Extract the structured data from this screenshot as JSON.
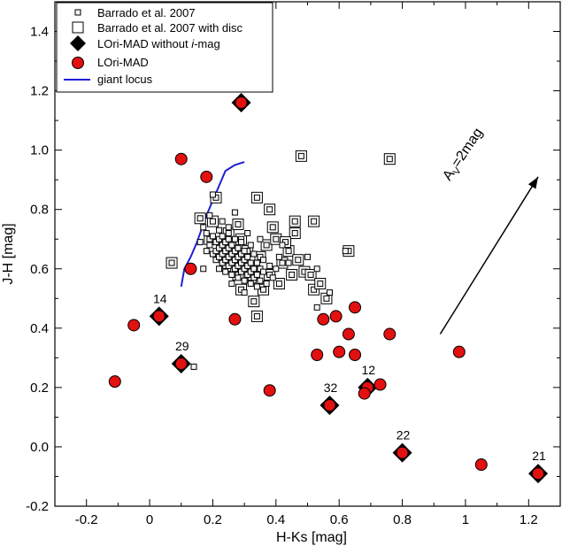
{
  "chart_data": {
    "type": "scatter",
    "xlabel": "H-Ks [mag]",
    "ylabel": "J-H [mag]",
    "xlim": [
      -0.3,
      1.3
    ],
    "ylim": [
      -0.2,
      1.5
    ],
    "xticks": [
      "-0.2",
      "0",
      "0.2",
      "0.4",
      "0.6",
      "0.8",
      "1",
      "1.2"
    ],
    "xtick_values": [
      -0.2,
      0,
      0.2,
      0.4,
      0.6,
      0.8,
      1.0,
      1.2
    ],
    "yticks": [
      "-0.2",
      "0.0",
      "0.2",
      "0.4",
      "0.6",
      "0.8",
      "1.0",
      "1.2",
      "1.4"
    ],
    "ytick_values": [
      -0.2,
      0.0,
      0.2,
      0.4,
      0.6,
      0.8,
      1.0,
      1.2,
      1.4
    ],
    "grid": false,
    "legend_position": "top-left",
    "legend": [
      {
        "label": "Barrado et al. 2007",
        "marker": "small-square"
      },
      {
        "label": "Barrado et al. 2007 with disc",
        "marker": "double-square"
      },
      {
        "label": "LOri-MAD without ",
        "label_italic": "i",
        "label_suffix": "-mag",
        "marker": "diamond"
      },
      {
        "label": "LOri-MAD",
        "marker": "red-circle"
      },
      {
        "label": "giant locus",
        "marker": "line"
      }
    ],
    "annotation": {
      "label": "A",
      "sub": "V",
      "suffix": "=2mag",
      "from": [
        0.92,
        0.38
      ],
      "to": [
        1.23,
        0.91
      ]
    },
    "colors": {
      "lori": "#e31010",
      "giant": "#1f1fd6",
      "marker_edge": "#000000",
      "square_fill": "#f4f4f4"
    },
    "series": [
      {
        "name": "Barrado et al. 2007",
        "marker": "small-square",
        "points": [
          [
            0.16,
            0.69
          ],
          [
            0.17,
            0.74
          ],
          [
            0.18,
            0.72
          ],
          [
            0.19,
            0.68
          ],
          [
            0.2,
            0.65
          ],
          [
            0.2,
            0.71
          ],
          [
            0.21,
            0.63
          ],
          [
            0.21,
            0.66
          ],
          [
            0.21,
            0.69
          ],
          [
            0.22,
            0.6
          ],
          [
            0.22,
            0.64
          ],
          [
            0.22,
            0.67
          ],
          [
            0.22,
            0.7
          ],
          [
            0.22,
            0.73
          ],
          [
            0.23,
            0.62
          ],
          [
            0.23,
            0.65
          ],
          [
            0.23,
            0.68
          ],
          [
            0.23,
            0.71
          ],
          [
            0.24,
            0.59
          ],
          [
            0.24,
            0.63
          ],
          [
            0.24,
            0.66
          ],
          [
            0.24,
            0.69
          ],
          [
            0.25,
            0.61
          ],
          [
            0.25,
            0.64
          ],
          [
            0.25,
            0.67
          ],
          [
            0.25,
            0.7
          ],
          [
            0.25,
            0.74
          ],
          [
            0.26,
            0.58
          ],
          [
            0.26,
            0.62
          ],
          [
            0.26,
            0.65
          ],
          [
            0.26,
            0.68
          ],
          [
            0.27,
            0.6
          ],
          [
            0.27,
            0.63
          ],
          [
            0.27,
            0.66
          ],
          [
            0.27,
            0.7
          ],
          [
            0.28,
            0.57
          ],
          [
            0.28,
            0.61
          ],
          [
            0.28,
            0.64
          ],
          [
            0.28,
            0.67
          ],
          [
            0.29,
            0.59
          ],
          [
            0.29,
            0.62
          ],
          [
            0.29,
            0.65
          ],
          [
            0.29,
            0.69
          ],
          [
            0.3,
            0.56
          ],
          [
            0.3,
            0.6
          ],
          [
            0.3,
            0.63
          ],
          [
            0.3,
            0.66
          ],
          [
            0.31,
            0.58
          ],
          [
            0.31,
            0.61
          ],
          [
            0.31,
            0.64
          ],
          [
            0.32,
            0.55
          ],
          [
            0.32,
            0.59
          ],
          [
            0.32,
            0.62
          ],
          [
            0.32,
            0.68
          ],
          [
            0.33,
            0.57
          ],
          [
            0.33,
            0.6
          ],
          [
            0.33,
            0.65
          ],
          [
            0.34,
            0.54
          ],
          [
            0.34,
            0.58
          ],
          [
            0.34,
            0.62
          ],
          [
            0.35,
            0.56
          ],
          [
            0.35,
            0.6
          ],
          [
            0.36,
            0.59
          ],
          [
            0.36,
            0.63
          ],
          [
            0.37,
            0.55
          ],
          [
            0.38,
            0.61
          ],
          [
            0.39,
            0.57
          ],
          [
            0.4,
            0.6
          ],
          [
            0.41,
            0.64
          ],
          [
            0.19,
            0.78
          ],
          [
            0.2,
            0.85
          ],
          [
            0.23,
            0.76
          ],
          [
            0.27,
            0.79
          ],
          [
            0.31,
            0.72
          ],
          [
            0.35,
            0.7
          ],
          [
            0.42,
            0.68
          ],
          [
            0.44,
            0.62
          ],
          [
            0.5,
            0.64
          ],
          [
            0.53,
            0.6
          ],
          [
            0.57,
            0.52
          ],
          [
            0.53,
            0.47
          ],
          [
            0.14,
            0.27
          ],
          [
            0.62,
            0.66
          ],
          [
            0.17,
            0.6
          ],
          [
            0.18,
            0.66
          ],
          [
            0.3,
            0.52
          ],
          [
            0.26,
            0.55
          ]
        ]
      },
      {
        "name": "Barrado et al. 2007 with disc",
        "marker": "double-square",
        "points": [
          [
            0.48,
            0.98
          ],
          [
            0.76,
            0.97
          ],
          [
            0.34,
            0.84
          ],
          [
            0.21,
            0.84
          ],
          [
            0.38,
            0.8
          ],
          [
            0.46,
            0.76
          ],
          [
            0.52,
            0.76
          ],
          [
            0.16,
            0.77
          ],
          [
            0.07,
            0.62
          ],
          [
            0.19,
            0.7
          ],
          [
            0.23,
            0.68
          ],
          [
            0.25,
            0.72
          ],
          [
            0.27,
            0.64
          ],
          [
            0.29,
            0.7
          ],
          [
            0.31,
            0.66
          ],
          [
            0.33,
            0.6
          ],
          [
            0.24,
            0.61
          ],
          [
            0.28,
            0.58
          ],
          [
            0.35,
            0.64
          ],
          [
            0.37,
            0.68
          ],
          [
            0.39,
            0.74
          ],
          [
            0.4,
            0.7
          ],
          [
            0.42,
            0.62
          ],
          [
            0.44,
            0.66
          ],
          [
            0.46,
            0.72
          ],
          [
            0.47,
            0.63
          ],
          [
            0.49,
            0.59
          ],
          [
            0.51,
            0.58
          ],
          [
            0.52,
            0.53
          ],
          [
            0.54,
            0.55
          ],
          [
            0.56,
            0.5
          ],
          [
            0.63,
            0.66
          ],
          [
            0.41,
            0.55
          ],
          [
            0.38,
            0.58
          ],
          [
            0.29,
            0.53
          ],
          [
            0.34,
            0.44
          ],
          [
            0.32,
            0.57
          ],
          [
            0.36,
            0.53
          ],
          [
            0.33,
            0.49
          ],
          [
            0.26,
            0.66
          ],
          [
            0.2,
            0.76
          ],
          [
            0.28,
            0.75
          ],
          [
            0.45,
            0.58
          ],
          [
            0.43,
            0.69
          ]
        ]
      },
      {
        "name": "LOri-MAD without i-mag",
        "marker": "diamond",
        "points": [
          {
            "x": 0.29,
            "y": 1.16,
            "label": ""
          },
          {
            "x": 0.03,
            "y": 0.44,
            "label": "14"
          },
          {
            "x": 0.1,
            "y": 0.28,
            "label": "29"
          },
          {
            "x": 0.57,
            "y": 0.14,
            "label": "32"
          },
          {
            "x": 0.69,
            "y": 0.2,
            "label": "12"
          },
          {
            "x": 0.8,
            "y": -0.02,
            "label": "22"
          },
          {
            "x": 1.23,
            "y": -0.09,
            "label": "21"
          }
        ]
      },
      {
        "name": "LOri-MAD",
        "marker": "red-circle",
        "points": [
          [
            0.29,
            1.16
          ],
          [
            0.1,
            0.97
          ],
          [
            0.18,
            0.91
          ],
          [
            0.13,
            0.6
          ],
          [
            0.03,
            0.44
          ],
          [
            0.27,
            0.43
          ],
          [
            0.1,
            0.28
          ],
          [
            -0.05,
            0.41
          ],
          [
            -0.11,
            0.22
          ],
          [
            0.38,
            0.19
          ],
          [
            0.57,
            0.14
          ],
          [
            0.69,
            0.2
          ],
          [
            0.68,
            0.18
          ],
          [
            0.73,
            0.21
          ],
          [
            0.8,
            -0.02
          ],
          [
            1.23,
            -0.09
          ],
          [
            1.05,
            -0.06
          ],
          [
            0.98,
            0.32
          ],
          [
            0.76,
            0.38
          ],
          [
            0.65,
            0.47
          ],
          [
            0.63,
            0.38
          ],
          [
            0.59,
            0.44
          ],
          [
            0.55,
            0.43
          ],
          [
            0.6,
            0.32
          ],
          [
            0.65,
            0.31
          ],
          [
            0.53,
            0.31
          ]
        ]
      },
      {
        "name": "giant locus",
        "marker": "line",
        "points": [
          [
            0.1,
            0.54
          ],
          [
            0.11,
            0.6
          ],
          [
            0.13,
            0.64
          ],
          [
            0.15,
            0.69
          ],
          [
            0.16,
            0.72
          ],
          [
            0.18,
            0.78
          ],
          [
            0.2,
            0.83
          ],
          [
            0.22,
            0.88
          ],
          [
            0.24,
            0.93
          ],
          [
            0.27,
            0.95
          ],
          [
            0.3,
            0.96
          ]
        ]
      }
    ]
  }
}
